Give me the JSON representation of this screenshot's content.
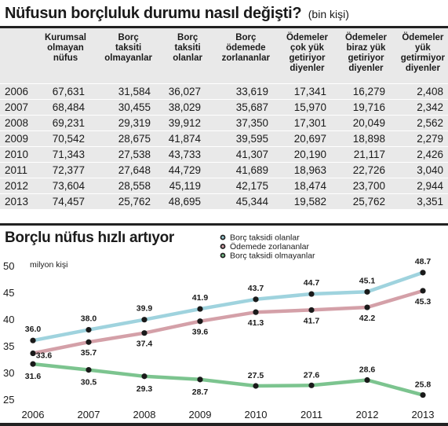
{
  "header": {
    "title": "Nüfusun borçluluk durumu nasıl değişti?",
    "unit": "(bin kişi)"
  },
  "table": {
    "columns": [
      [
        "Kurumsal",
        "olmayan",
        "nüfus"
      ],
      [
        "Borç",
        "taksiti",
        "olmayanlar"
      ],
      [
        "Borç",
        "taksiti",
        "olanlar"
      ],
      [
        "Borç",
        "ödemede",
        "zorlananlar"
      ],
      [
        "Ödemeler",
        "çok yük",
        "getiriyor",
        "diyenler"
      ],
      [
        "Ödemeler",
        "biraz yük",
        "getiriyor",
        "diyenler"
      ],
      [
        "Ödemeler",
        "yük",
        "getirmiyor",
        "diyenler"
      ]
    ],
    "rows": [
      [
        "2006",
        "67,631",
        "31,584",
        "36,027",
        "33,619",
        "17,341",
        "16,279",
        "2,408"
      ],
      [
        "2007",
        "68,484",
        "30,455",
        "38,029",
        "35,687",
        "15,970",
        "19,716",
        "2,342"
      ],
      [
        "2008",
        "69,231",
        "29,319",
        "39,912",
        "37,350",
        "17,301",
        "20,049",
        "2,562"
      ],
      [
        "2009",
        "70,542",
        "28,675",
        "41,874",
        "39,595",
        "20,697",
        "18,898",
        "2,279"
      ],
      [
        "2010",
        "71,343",
        "27,538",
        "43,733",
        "41,307",
        "20,190",
        "21,117",
        "2,426"
      ],
      [
        "2011",
        "72,377",
        "27,648",
        "44,729",
        "41,689",
        "18,963",
        "22,726",
        "3,040"
      ],
      [
        "2012",
        "73,604",
        "28,558",
        "45,119",
        "42,175",
        "18,474",
        "23,700",
        "2,944"
      ],
      [
        "2013",
        "74,457",
        "25,762",
        "48,695",
        "45,344",
        "19,582",
        "25,762",
        "3,351"
      ]
    ]
  },
  "chart_data": {
    "type": "line",
    "title": "Borçlu nüfus hızlı artıyor",
    "ylabel": "milyon kişi",
    "x": [
      "2006",
      "2007",
      "2008",
      "2009",
      "2010",
      "2011",
      "2012",
      "2013"
    ],
    "ylim": [
      25,
      50
    ],
    "yticks": [
      25,
      30,
      35,
      40,
      45,
      50
    ],
    "grid": false,
    "legend": "top-center",
    "series": [
      {
        "name": "Borç taksidi olanlar",
        "color": "#9fd3de",
        "values": [
          36.0,
          38.0,
          39.9,
          41.9,
          43.7,
          44.7,
          45.1,
          48.7
        ],
        "labels": [
          "36.0",
          "38.0",
          "39.9",
          "41.9",
          "43.7",
          "44.7",
          "45.1",
          "48.7"
        ]
      },
      {
        "name": "Ödemede zorlananlar",
        "color": "#d4a0a8",
        "values": [
          33.6,
          35.7,
          37.4,
          39.6,
          41.3,
          41.7,
          42.2,
          45.3
        ],
        "labels": [
          "33.6",
          "35.7",
          "37.4",
          "39.6",
          "41.3",
          "41.7",
          "42.2",
          "45.3"
        ]
      },
      {
        "name": "Borç taksidi olmayanlar",
        "color": "#7cc48f",
        "values": [
          31.6,
          30.5,
          29.3,
          28.7,
          27.5,
          27.6,
          28.6,
          25.8
        ],
        "labels": [
          "31.6",
          "30.5",
          "29.3",
          "28.7",
          "27.5",
          "27.6",
          "28.6",
          "25.8"
        ]
      }
    ]
  }
}
